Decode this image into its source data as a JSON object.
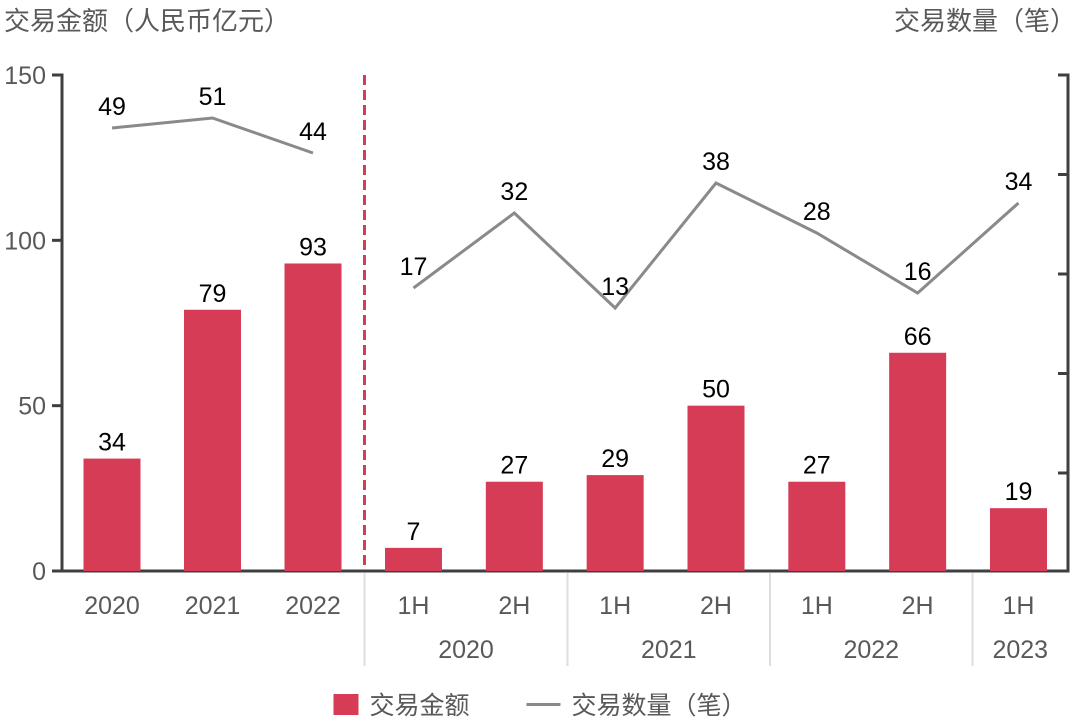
{
  "titles": {
    "left": "交易金额（人民币亿元）",
    "right": "交易数量（笔）"
  },
  "legend": {
    "bar_label": "交易金额",
    "line_label": "交易数量（笔）"
  },
  "colors": {
    "bar": "#D63C55",
    "line": "#8A8A8A",
    "axis": "#3F3F3F",
    "tick_text": "#595959",
    "value_text": "#000000",
    "group_separator": "#DEDEDE",
    "dashed_divider": "#D63C55"
  },
  "chart_data": {
    "type": "bar+line combo, two sections separated by dashed divider",
    "left_axis": {
      "title": "交易金额（人民币亿元）",
      "tick_labels": [
        150,
        100,
        50,
        0
      ],
      "range": [
        0,
        150
      ]
    },
    "right_axis": {
      "title": "交易数量（笔）",
      "tick_labels": [],
      "unlabeled_tick_count": 5
    },
    "annual_section": {
      "categories": [
        "2020",
        "2021",
        "2022"
      ],
      "bar_series": {
        "name": "交易金额",
        "values": [
          34,
          79,
          93
        ]
      },
      "line_series": {
        "name": "交易数量（笔）",
        "values": [
          49,
          51,
          44
        ]
      }
    },
    "half_year_section": {
      "categories": [
        "1H",
        "2H",
        "1H",
        "2H",
        "1H",
        "2H",
        "1H"
      ],
      "groups": [
        {
          "label": "2020",
          "size": 2
        },
        {
          "label": "2021",
          "size": 2
        },
        {
          "label": "2022",
          "size": 2
        },
        {
          "label": "2023",
          "size": 1
        }
      ],
      "bar_series": {
        "name": "交易金额",
        "values": [
          7,
          27,
          29,
          50,
          27,
          66,
          19
        ]
      },
      "line_series": {
        "name": "交易数量（笔）",
        "values": [
          17,
          32,
          13,
          38,
          28,
          16,
          34
        ]
      }
    },
    "layout_hints": {
      "legend_position": "bottom-center",
      "grid": "off",
      "bar_value_labels": "above bars, black",
      "line_value_labels": "above points, black"
    }
  }
}
